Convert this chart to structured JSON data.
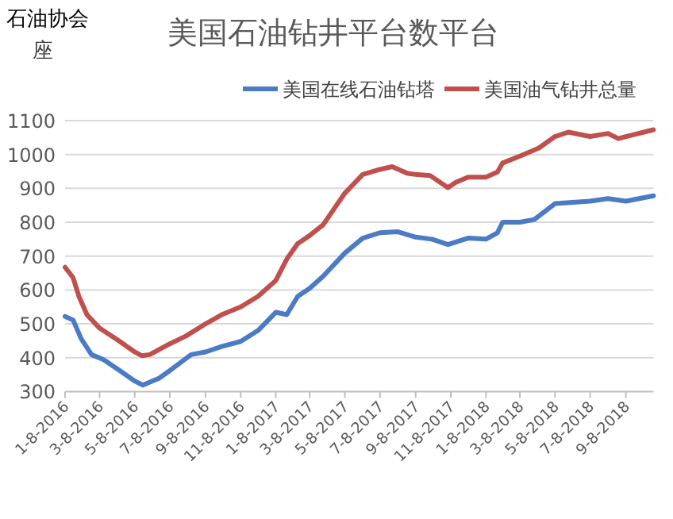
{
  "chart_data": {
    "type": "line",
    "title": "美国石油钻井平台数平台",
    "ylabel": "座",
    "annotations": [
      "石油协会"
    ],
    "xlim": [
      "2016-01-08",
      "2018-10-26"
    ],
    "xticks": [
      {
        "value": "2016-01-08",
        "label": "1-8-2016"
      },
      {
        "value": "2016-03-08",
        "label": "3-8-2016"
      },
      {
        "value": "2016-05-08",
        "label": "5-8-2016"
      },
      {
        "value": "2016-07-08",
        "label": "7-8-2016"
      },
      {
        "value": "2016-09-08",
        "label": "9-8-2016"
      },
      {
        "value": "2016-11-08",
        "label": "11-8-2016"
      },
      {
        "value": "2017-01-08",
        "label": "1-8-2017"
      },
      {
        "value": "2017-03-08",
        "label": "3-8-2017"
      },
      {
        "value": "2017-05-08",
        "label": "5-8-2017"
      },
      {
        "value": "2017-07-08",
        "label": "7-8-2017"
      },
      {
        "value": "2017-09-08",
        "label": "9-8-2017"
      },
      {
        "value": "2017-11-08",
        "label": "11-8-2017"
      },
      {
        "value": "2018-01-08",
        "label": "1-8-2018"
      },
      {
        "value": "2018-03-08",
        "label": "3-8-2018"
      },
      {
        "value": "2018-05-08",
        "label": "5-8-2018"
      },
      {
        "value": "2018-07-08",
        "label": "7-8-2018"
      },
      {
        "value": "2018-09-08",
        "label": "9-8-2018"
      }
    ],
    "ylim": [
      300,
      1100
    ],
    "yticks": [
      300,
      400,
      500,
      600,
      700,
      800,
      900,
      1000,
      1100
    ],
    "grid": "y",
    "legend": "top right",
    "marker": "none",
    "line_style": "solid",
    "series": [
      {
        "name": "美国在线石油钻塔",
        "color": "#4a7bc4",
        "x": [
          "2016-01-08",
          "2016-01-22",
          "2016-02-05",
          "2016-02-23",
          "2016-03-15",
          "2016-04-12",
          "2016-05-08",
          "2016-05-22",
          "2016-06-19",
          "2016-07-08",
          "2016-08-14",
          "2016-09-08",
          "2016-10-06",
          "2016-11-08",
          "2016-12-08",
          "2017-01-08",
          "2017-01-27",
          "2017-02-15",
          "2017-03-08",
          "2017-03-31",
          "2017-05-08",
          "2017-06-08",
          "2017-07-08",
          "2017-08-07",
          "2017-09-08",
          "2017-10-06",
          "2017-11-03",
          "2017-12-08",
          "2018-01-08",
          "2018-01-28",
          "2018-02-06",
          "2018-03-08",
          "2018-04-02",
          "2018-05-08",
          "2018-07-08",
          "2018-08-08",
          "2018-09-08",
          "2018-10-26"
        ],
        "values": [
          522,
          511,
          456,
          409,
          394,
          362,
          331,
          319,
          339,
          362,
          409,
          417,
          433,
          448,
          480,
          534,
          527,
          581,
          605,
          640,
          709,
          753,
          769,
          772,
          756,
          750,
          734,
          753,
          750,
          769,
          800,
          800,
          808,
          855,
          862,
          870,
          862,
          878
        ]
      },
      {
        "name": "美国油气钻井总量",
        "color": "#c0504d",
        "x": [
          "2016-01-08",
          "2016-01-22",
          "2016-02-01",
          "2016-02-15",
          "2016-03-08",
          "2016-04-05",
          "2016-05-08",
          "2016-05-20",
          "2016-06-03",
          "2016-07-08",
          "2016-08-05",
          "2016-09-08",
          "2016-10-06",
          "2016-11-08",
          "2016-12-08",
          "2017-01-08",
          "2017-01-27",
          "2017-02-15",
          "2017-03-08",
          "2017-03-31",
          "2017-05-08",
          "2017-06-08",
          "2017-07-08",
          "2017-07-29",
          "2017-08-25",
          "2017-09-08",
          "2017-10-03",
          "2017-11-03",
          "2017-11-16",
          "2017-12-08",
          "2018-01-08",
          "2018-01-28",
          "2018-02-06",
          "2018-03-08",
          "2018-04-10",
          "2018-05-08",
          "2018-05-31",
          "2018-07-08",
          "2018-08-08",
          "2018-08-26",
          "2018-09-08",
          "2018-10-26"
        ],
        "values": [
          667,
          636,
          581,
          527,
          487,
          456,
          417,
          406,
          409,
          441,
          464,
          500,
          527,
          550,
          581,
          628,
          691,
          737,
          761,
          792,
          886,
          941,
          956,
          964,
          944,
          941,
          938,
          902,
          917,
          933,
          933,
          948,
          975,
          995,
          1019,
          1053,
          1066,
          1053,
          1062,
          1047,
          1053,
          1073
        ]
      }
    ]
  }
}
